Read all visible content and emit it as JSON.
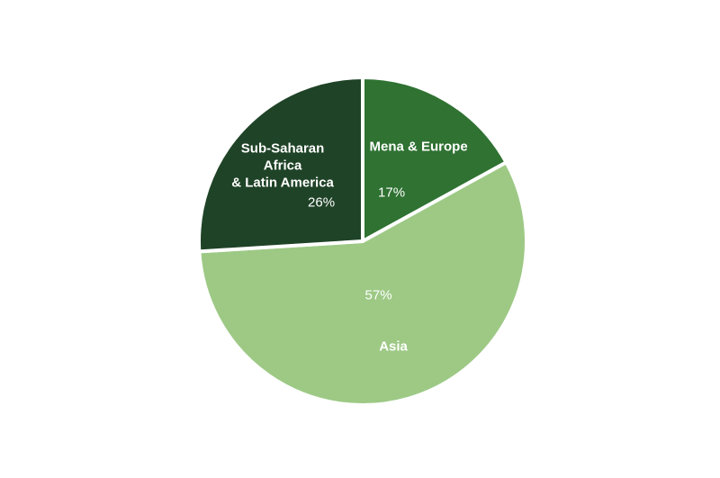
{
  "chart_data": {
    "type": "pie",
    "categories": [
      "Mena & Europe",
      "Asia",
      "Sub-Saharan\nAfrica\n& Latin America"
    ],
    "values": [
      17,
      57,
      26
    ],
    "value_labels": [
      "17%",
      "57%",
      "26%"
    ],
    "colors": [
      "#2f7232",
      "#9dc985",
      "#1f4327"
    ]
  }
}
